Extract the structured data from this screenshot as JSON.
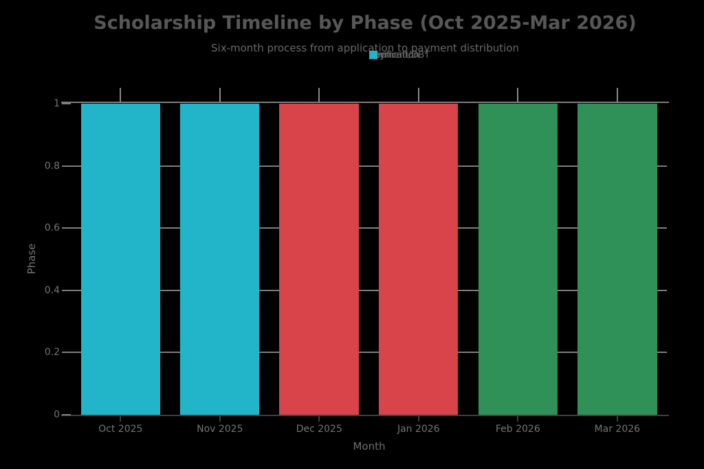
{
  "colors": {
    "background": "#000000",
    "grid_line": "#7f7f7f",
    "plot_top_line": "#7f7f7f",
    "axis_line": "#3f3f3f",
    "top_tick": "#8a8a8a",
    "bottom_tick": "#3f3f3f",
    "y_tick_dash": "#7f7f7f",
    "title_text": "#575757",
    "subtitle_text": "#6a6a6a",
    "legend_text": "#6a6a6a",
    "tick_label_text": "#757575",
    "axis_title_text": "#6f6f6f"
  },
  "chart_data": {
    "type": "bar",
    "title": "Scholarship Timeline by Phase (Oct 2025-Mar 2026)",
    "subtitle": "Six-month process from application to payment distribution",
    "xlabel": "Month",
    "ylabel": "Phase",
    "categories": [
      "Oct 2025",
      "Nov 2025",
      "Dec 2025",
      "Jan 2026",
      "Feb 2026",
      "Mar 2026"
    ],
    "values": [
      1,
      1,
      1,
      1,
      1,
      1
    ],
    "bar_phases": [
      "Application",
      "Application",
      "Verification",
      "Verification",
      "Payment/DBT",
      "Payment/DBT"
    ],
    "phases": [
      {
        "name": "Payment/DBT",
        "color": "#2f9158"
      },
      {
        "name": "Verification",
        "color": "#d9444a"
      },
      {
        "name": "Application",
        "color": "#22b5c9"
      }
    ],
    "ylim": [
      0,
      1
    ],
    "yticks": [
      0,
      0.2,
      0.4,
      0.6,
      0.8,
      1
    ],
    "ytick_labels": [
      "0",
      "0.2",
      "0.4",
      "0.6",
      "0.8",
      "1"
    ],
    "grid": true,
    "legend_position": "top-center",
    "bar_gap_fraction": 0.2
  }
}
